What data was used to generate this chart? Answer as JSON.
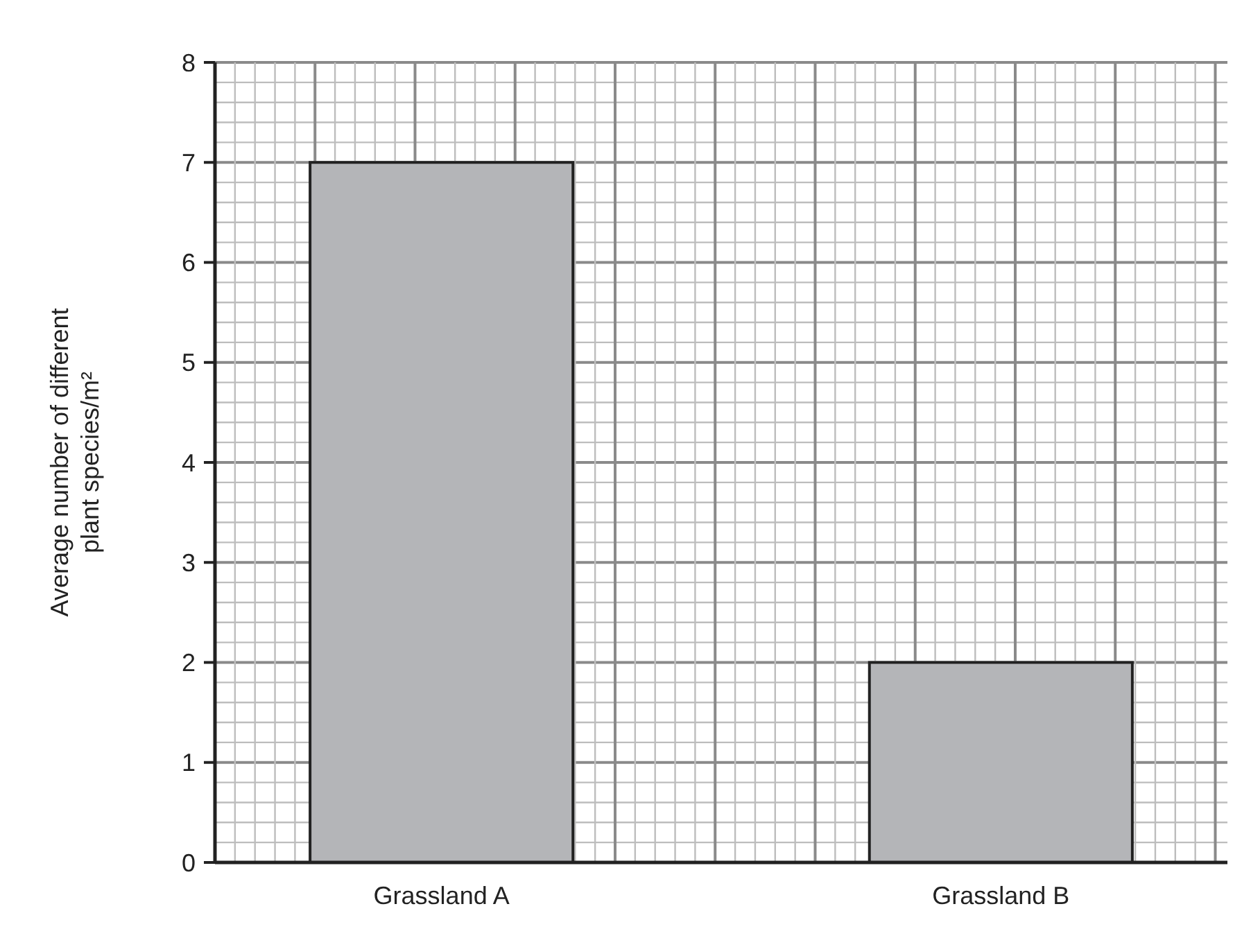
{
  "chart_data": {
    "type": "bar",
    "ylabel": "Average number of different plant species/m²",
    "categories": [
      "Grassland A",
      "Grassland B"
    ],
    "values": [
      7,
      2
    ],
    "color": "#b4b5b8",
    "ylim": [
      0,
      8
    ],
    "yticks": [
      0,
      1,
      2,
      3,
      4,
      5,
      6,
      7,
      8
    ],
    "grid": true
  }
}
